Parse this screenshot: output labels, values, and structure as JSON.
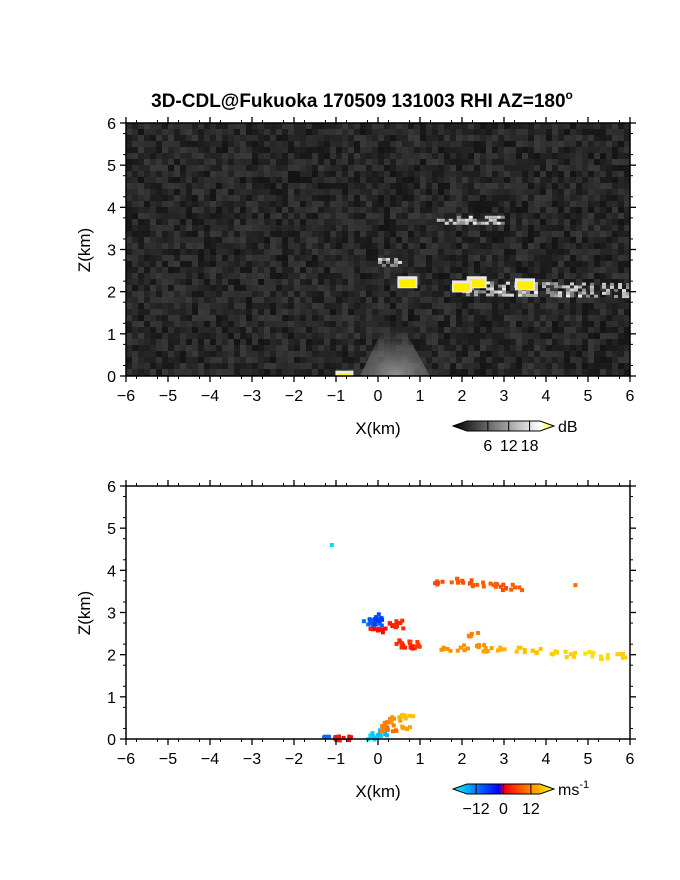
{
  "chart_data": [
    {
      "type": "heatmap",
      "title": "3D-CDL@Fukuoka 170509 131003 RHI AZ=180°",
      "title_main": "3D-CDL@Fukuoka 170509 131003 RHI AZ=180",
      "title_sup": "o",
      "xlabel": "X(km)",
      "ylabel": "Z(km)",
      "xlim": [
        -6,
        6
      ],
      "ylim": [
        0,
        6
      ],
      "xticks": [
        "-6",
        "-5",
        "-4",
        "-3",
        "-2",
        "-1",
        "0",
        "1",
        "2",
        "3",
        "4",
        "5",
        "6"
      ],
      "yticks": [
        "0",
        "1",
        "2",
        "3",
        "4",
        "5",
        "6"
      ],
      "quantity": "backscatter intensity",
      "colorbar": {
        "unit": "dB",
        "ticks": [
          "6",
          "12",
          "18"
        ],
        "range": [
          0,
          21
        ],
        "colors": [
          "#000000",
          "#ffffff",
          "#ffff00"
        ]
      },
      "features": [
        {
          "name": "noise background",
          "x": [
            -6,
            6
          ],
          "z": [
            0,
            6
          ],
          "value_db": 2
        },
        {
          "name": "near-field cone",
          "x": [
            -0.4,
            0.6
          ],
          "z": [
            0,
            0.8
          ],
          "value_db": 6
        },
        {
          "name": "cloud layer high",
          "x": [
            1.4,
            3.0
          ],
          "z": [
            3.65,
            3.8
          ],
          "value_db": 9
        },
        {
          "name": "cloud layer low",
          "x": [
            2.0,
            6.0
          ],
          "z": [
            1.9,
            2.25
          ],
          "value_db": 10
        },
        {
          "name": "cloud fragment",
          "x": [
            0.0,
            0.6
          ],
          "z": [
            2.6,
            2.8
          ],
          "value_db": 9
        }
      ],
      "strong_echoes": [
        {
          "x": 0.7,
          "z": 2.2,
          "value_db": 19
        },
        {
          "x": 2.35,
          "z": 2.2,
          "value_db": 18
        },
        {
          "x": 3.5,
          "z": 2.15,
          "value_db": 17
        },
        {
          "x": 2.0,
          "z": 2.1,
          "value_db": 17
        },
        {
          "x": -0.8,
          "z": 0.02,
          "value_db": 18
        }
      ]
    },
    {
      "type": "scatter",
      "quantity": "Doppler radial velocity",
      "xlabel": "X(km)",
      "ylabel": "Z(km)",
      "xlim": [
        -6,
        6
      ],
      "ylim": [
        0,
        6
      ],
      "xticks": [
        "-6",
        "-5",
        "-4",
        "-3",
        "-2",
        "-1",
        "0",
        "1",
        "2",
        "3",
        "4",
        "5",
        "6"
      ],
      "yticks": [
        "0",
        "1",
        "2",
        "3",
        "4",
        "5",
        "6"
      ],
      "colorbar": {
        "unit_main": "ms",
        "unit_sup": "-1",
        "ticks": [
          "-12",
          "0",
          "12"
        ],
        "range": [
          -16,
          16
        ],
        "colors": [
          "#00ffff",
          "#0080ff",
          "#0000ff",
          "#ff0000",
          "#ff8000",
          "#ffff00"
        ]
      },
      "points": [
        {
          "x": -1.1,
          "z": 4.6,
          "v": -14
        },
        {
          "x": -0.2,
          "z": 2.75,
          "v": -8
        },
        {
          "x": -0.1,
          "z": 2.9,
          "v": -6
        },
        {
          "x": -0.05,
          "z": 2.7,
          "v": -7
        },
        {
          "x": 0.0,
          "z": 2.8,
          "v": -5
        },
        {
          "x": -0.1,
          "z": 2.55,
          "v": 2
        },
        {
          "x": 0.05,
          "z": 2.6,
          "v": 1
        },
        {
          "x": 0.4,
          "z": 2.7,
          "v": 2
        },
        {
          "x": 0.5,
          "z": 2.65,
          "v": 3
        },
        {
          "x": 0.45,
          "z": 2.75,
          "v": 3
        },
        {
          "x": 0.55,
          "z": 2.2,
          "v": 3
        },
        {
          "x": 0.65,
          "z": 2.3,
          "v": 3
        },
        {
          "x": 0.75,
          "z": 2.15,
          "v": 2
        },
        {
          "x": 0.85,
          "z": 2.25,
          "v": 4
        },
        {
          "x": 1.5,
          "z": 3.72,
          "v": 5
        },
        {
          "x": 1.8,
          "z": 3.75,
          "v": 6
        },
        {
          "x": 2.1,
          "z": 3.7,
          "v": 5
        },
        {
          "x": 2.4,
          "z": 3.65,
          "v": 6
        },
        {
          "x": 2.7,
          "z": 3.62,
          "v": 6
        },
        {
          "x": 3.0,
          "z": 3.6,
          "v": 5
        },
        {
          "x": 3.3,
          "z": 3.6,
          "v": 6
        },
        {
          "x": 4.7,
          "z": 3.65,
          "v": 7
        },
        {
          "x": 1.6,
          "z": 2.1,
          "v": 9
        },
        {
          "x": 2.0,
          "z": 2.15,
          "v": 9
        },
        {
          "x": 2.3,
          "z": 2.45,
          "v": 8
        },
        {
          "x": 2.4,
          "z": 2.2,
          "v": 9
        },
        {
          "x": 2.6,
          "z": 2.1,
          "v": 10
        },
        {
          "x": 3.0,
          "z": 2.1,
          "v": 11
        },
        {
          "x": 3.4,
          "z": 2.1,
          "v": 12
        },
        {
          "x": 3.8,
          "z": 2.1,
          "v": 12
        },
        {
          "x": 4.2,
          "z": 2.05,
          "v": 13
        },
        {
          "x": 4.6,
          "z": 2.0,
          "v": 13
        },
        {
          "x": 5.0,
          "z": 2.0,
          "v": 14
        },
        {
          "x": 5.4,
          "z": 1.95,
          "v": 14
        },
        {
          "x": 5.8,
          "z": 1.95,
          "v": 13
        },
        {
          "x": -1.15,
          "z": 0.05,
          "v": -8
        },
        {
          "x": -0.9,
          "z": 0.02,
          "v": 2
        },
        {
          "x": -0.7,
          "z": 0.02,
          "v": 1
        },
        {
          "x": -0.1,
          "z": 0.05,
          "v": -14
        },
        {
          "x": 0.0,
          "z": 0.1,
          "v": -13
        },
        {
          "x": 0.1,
          "z": 0.15,
          "v": -12
        },
        {
          "x": 0.15,
          "z": 0.25,
          "v": 8
        },
        {
          "x": 0.25,
          "z": 0.35,
          "v": 8
        },
        {
          "x": 0.35,
          "z": 0.2,
          "v": 7
        },
        {
          "x": 0.4,
          "z": 0.45,
          "v": 9
        },
        {
          "x": 0.55,
          "z": 0.5,
          "v": 11
        },
        {
          "x": 0.65,
          "z": 0.3,
          "v": 10
        },
        {
          "x": 0.7,
          "z": 0.55,
          "v": 12
        }
      ]
    }
  ]
}
